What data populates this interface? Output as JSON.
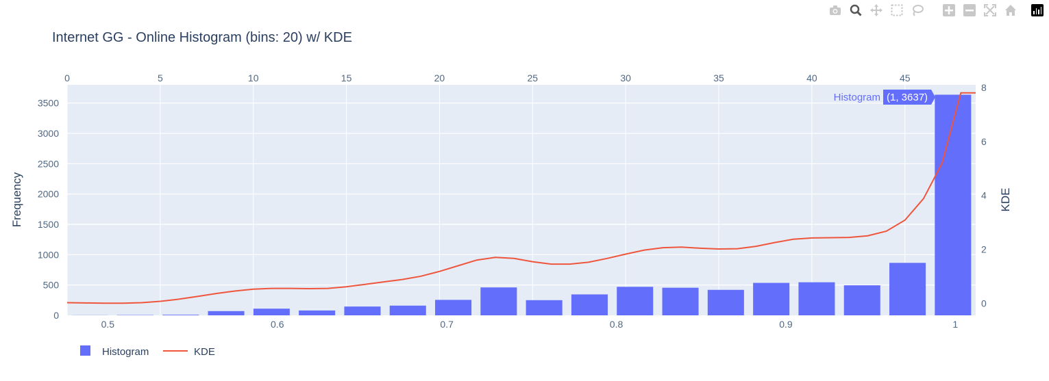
{
  "chart_data": {
    "type": "bar",
    "title": "Internet GG - Online Histogram (bins: 20) w/ KDE",
    "xlabel": "",
    "ylabel": "Frequency",
    "y2label": "KDE",
    "x_bottom": {
      "range": [
        0.476,
        1.012
      ],
      "ticks": [
        0.5,
        0.6,
        0.7,
        0.8,
        0.9,
        1
      ]
    },
    "x_top": {
      "range": [
        0,
        48.8
      ],
      "ticks": [
        0,
        5,
        10,
        15,
        20,
        25,
        30,
        35,
        40,
        45
      ]
    },
    "y_left": {
      "range": [
        0,
        3800
      ],
      "ticks": [
        0,
        500,
        1000,
        1500,
        2000,
        2500,
        3000,
        3500
      ]
    },
    "y_right": {
      "range": [
        -0.45,
        8.1
      ],
      "ticks": [
        0,
        2,
        4,
        6,
        8
      ]
    },
    "grid": true,
    "legend_placement": "bottom-left",
    "series": [
      {
        "name": "Histogram",
        "kind": "bar",
        "color": "#636efa",
        "bin_width": 0.0268,
        "x": [
          0.4894,
          0.5162,
          0.543,
          0.5698,
          0.5966,
          0.6234,
          0.6502,
          0.677,
          0.7038,
          0.7306,
          0.7574,
          0.7842,
          0.811,
          0.8378,
          0.8646,
          0.8914,
          0.9182,
          0.945,
          0.9718,
          0.9986
        ],
        "values": [
          2,
          5,
          10,
          70,
          110,
          80,
          145,
          160,
          255,
          460,
          250,
          345,
          470,
          455,
          420,
          535,
          545,
          495,
          865,
          3637
        ]
      },
      {
        "name": "KDE",
        "kind": "line",
        "color": "#ef553b",
        "x": [
          0,
          1,
          2,
          3,
          4,
          5,
          6,
          7,
          8,
          9,
          10,
          11,
          12,
          13,
          14,
          15,
          16,
          17,
          18,
          19,
          20,
          21,
          22,
          23,
          24,
          25,
          26,
          27,
          28,
          29,
          30,
          31,
          32,
          33,
          34,
          35,
          36,
          37,
          38,
          39,
          40,
          41,
          42,
          43,
          44,
          45,
          46,
          47,
          48
        ],
        "values": [
          0.02,
          0.01,
          0.0,
          0.0,
          0.02,
          0.07,
          0.15,
          0.25,
          0.36,
          0.45,
          0.52,
          0.55,
          0.55,
          0.54,
          0.55,
          0.61,
          0.7,
          0.79,
          0.88,
          1.0,
          1.18,
          1.39,
          1.6,
          1.7,
          1.66,
          1.54,
          1.45,
          1.45,
          1.52,
          1.66,
          1.82,
          1.97,
          2.06,
          2.08,
          2.04,
          2.01,
          2.02,
          2.11,
          2.25,
          2.37,
          2.42,
          2.43,
          2.44,
          2.5,
          2.67,
          3.08,
          3.88,
          5.2,
          7.8
        ]
      }
    ],
    "hover_label": {
      "series": "Histogram",
      "text": "(1, 3637)"
    }
  },
  "modebar": {
    "icons": [
      "camera-icon",
      "zoom-icon",
      "pan-icon",
      "box-select-icon",
      "lasso-select-icon",
      "zoom-in-icon",
      "zoom-out-icon",
      "autoscale-icon",
      "reset-axes-icon"
    ]
  }
}
